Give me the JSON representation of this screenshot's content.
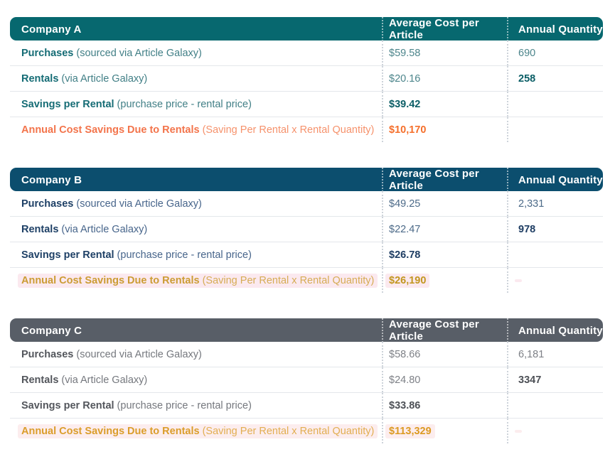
{
  "columns": {
    "cost": "Average Cost per Article",
    "qty": "Annual Quantity"
  },
  "tables": [
    {
      "name": "Company A",
      "colors": {
        "header_bg": "#07686F",
        "label": "#156C75",
        "note": "#417F86",
        "value": "#4C858B",
        "strong": "#0B5E66",
        "emphasis": "#F3744B",
        "emphasis_note": "#F6926C",
        "emphasis_value": "#F56F2B",
        "highlight": "transparent"
      },
      "rows": [
        {
          "label": "Purchases",
          "note": "(sourced via Article Galaxy)",
          "cost": "$59.58",
          "qty": "690"
        },
        {
          "label": "Rentals",
          "note": "(via Article Galaxy)",
          "cost": "$20.16",
          "qty": "258"
        },
        {
          "label": "Savings per Rental",
          "note": "(purchase price - rental price)",
          "cost": "$39.42",
          "qty": ""
        },
        {
          "label": "Annual Cost Savings Due to Rentals",
          "note": "(Saving Per Rental x Rental Quantity)",
          "cost": "$10,170",
          "qty": ""
        }
      ]
    },
    {
      "name": "Company B",
      "colors": {
        "header_bg": "#0C4E6E",
        "label": "#1E4066",
        "note": "#47658B",
        "value": "#4C6A88",
        "strong": "#1E3D63",
        "emphasis": "#CC9C34",
        "emphasis_note": "#D6AC55",
        "emphasis_value": "#C2961F",
        "highlight": "#FBE9EF"
      },
      "rows": [
        {
          "label": "Purchases",
          "note": "(sourced via Article Galaxy)",
          "cost": "$49.25",
          "qty": "2,331"
        },
        {
          "label": "Rentals",
          "note": "(via Article Galaxy)",
          "cost": "$22.47",
          "qty": "978"
        },
        {
          "label": "Savings per Rental",
          "note": "(purchase price - rental price)",
          "cost": "$26.78",
          "qty": ""
        },
        {
          "label": "Annual Cost Savings Due to Rentals",
          "note": "(Saving Per Rental x Rental Quantity)",
          "cost": "$26,190",
          "qty": ""
        }
      ]
    },
    {
      "name": "Company C",
      "colors": {
        "header_bg": "#585E67",
        "label": "#53565C",
        "note": "#75787E",
        "value": "#7E8187",
        "strong": "#4D5056",
        "emphasis": "#DB9D2B",
        "emphasis_note": "#E2AE51",
        "emphasis_value": "#DC9A22",
        "highlight": "#FCEDEE"
      },
      "rows": [
        {
          "label": "Purchases",
          "note": "(sourced via Article Galaxy)",
          "cost": "$58.66",
          "qty": "6,181"
        },
        {
          "label": "Rentals",
          "note": "(via Article Galaxy)",
          "cost": "$24.80",
          "qty": "3347"
        },
        {
          "label": "Savings per Rental",
          "note": "(purchase price - rental price)",
          "cost": "$33.86",
          "qty": ""
        },
        {
          "label": "Annual Cost Savings Due to Rentals",
          "note": "(Saving Per Rental x Rental Quantity)",
          "cost": "$113,329",
          "qty": ""
        }
      ]
    }
  ]
}
